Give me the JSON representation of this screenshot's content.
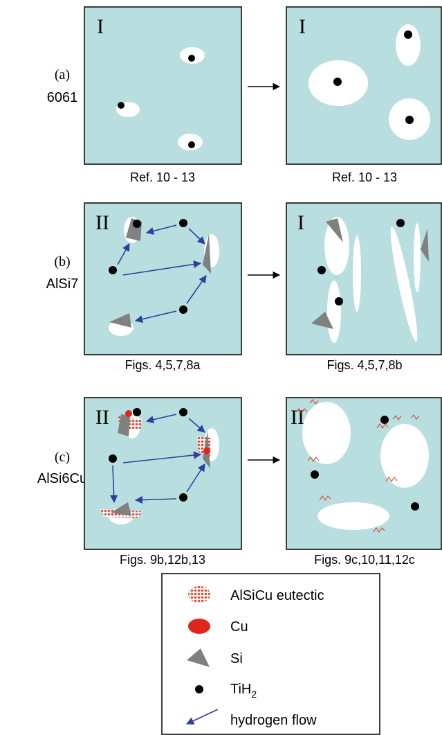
{
  "rows": [
    {
      "label": "(a)",
      "alloy": "6061",
      "panels": [
        {
          "stage": "I",
          "caption": "Ref. 10 - 13"
        },
        {
          "stage": "I",
          "caption": "Ref. 10 - 13"
        }
      ]
    },
    {
      "label": "(b)",
      "alloy": "AlSi7",
      "panels": [
        {
          "stage": "II",
          "caption": "Figs. 4,5,7,8a"
        },
        {
          "stage": "I",
          "caption": "Figs. 4,5,7,8b"
        }
      ]
    },
    {
      "label": "(c)",
      "alloy": "AlSi6Cu",
      "panels": [
        {
          "stage": "II",
          "caption": "Figs. 9b,12b,13"
        },
        {
          "stage": "II",
          "caption": "Figs. 9c,10,11,12c"
        }
      ]
    }
  ],
  "legend": [
    {
      "label": "AlSiCu eutectic"
    },
    {
      "label": "Cu"
    },
    {
      "label": "Si"
    },
    {
      "label": "TiH",
      "sub": "2"
    },
    {
      "label": "hydrogen flow"
    }
  ]
}
